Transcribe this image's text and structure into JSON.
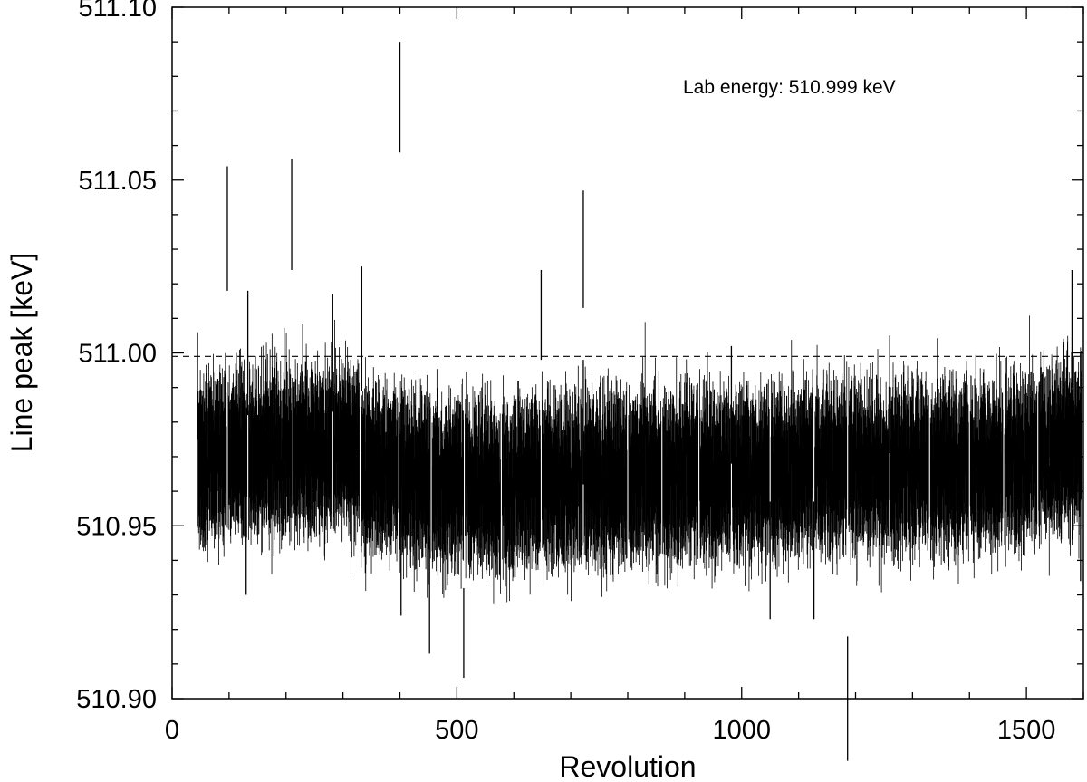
{
  "chart_data": {
    "type": "scatter",
    "title": "",
    "xlabel": "Revolution",
    "ylabel": "Line peak [keV]",
    "xlim": [
      0,
      1600
    ],
    "ylim": [
      510.9,
      511.1
    ],
    "xticks": [
      0,
      500,
      1000,
      1500
    ],
    "xtick_labels": [
      "0",
      "500",
      "1000",
      "1500"
    ],
    "yticks": [
      510.9,
      510.95,
      511.0,
      511.05,
      511.1
    ],
    "ytick_labels": [
      "510.90",
      "510.95",
      "511.00",
      "511.05",
      "511.10"
    ],
    "reference_line": {
      "y": 510.999,
      "style": "dashed"
    },
    "annotation": "Lab energy: 510.999 keV",
    "x_range_observed": [
      45,
      1597
    ],
    "typical_center": 510.967,
    "typical_error_halfwidth": 0.018,
    "noise_seed": 7,
    "outliers": [
      {
        "x": 97,
        "y": 511.036,
        "err": 0.018
      },
      {
        "x": 130,
        "y": 510.95,
        "err": 0.02
      },
      {
        "x": 133,
        "y": 511.0,
        "err": 0.018
      },
      {
        "x": 210,
        "y": 511.04,
        "err": 0.016
      },
      {
        "x": 282,
        "y": 511.0,
        "err": 0.017
      },
      {
        "x": 333,
        "y": 511.007,
        "err": 0.018
      },
      {
        "x": 400,
        "y": 511.074,
        "err": 0.016
      },
      {
        "x": 402,
        "y": 510.94,
        "err": 0.016
      },
      {
        "x": 452,
        "y": 510.93,
        "err": 0.017
      },
      {
        "x": 512,
        "y": 510.919,
        "err": 0.013
      },
      {
        "x": 648,
        "y": 511.011,
        "err": 0.013
      },
      {
        "x": 722,
        "y": 511.03,
        "err": 0.017
      },
      {
        "x": 722,
        "y": 510.98,
        "err": 0.018
      },
      {
        "x": 982,
        "y": 510.985,
        "err": 0.017
      },
      {
        "x": 1050,
        "y": 510.94,
        "err": 0.017
      },
      {
        "x": 1127,
        "y": 510.94,
        "err": 0.017
      },
      {
        "x": 1186,
        "y": 510.9,
        "err": 0.018
      },
      {
        "x": 1260,
        "y": 510.988,
        "err": 0.017
      },
      {
        "x": 1580,
        "y": 511.007,
        "err": 0.017
      },
      {
        "x": 1595,
        "y": 510.954,
        "err": 0.02
      }
    ]
  }
}
